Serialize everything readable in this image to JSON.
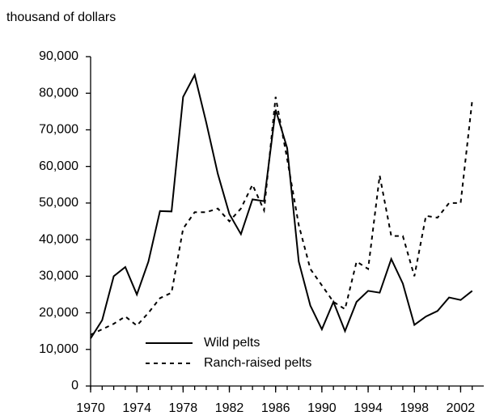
{
  "chart_data": {
    "type": "line",
    "y_label": "thousand of dollars",
    "x": [
      1970,
      1971,
      1972,
      1973,
      1974,
      1975,
      1976,
      1977,
      1978,
      1979,
      1980,
      1981,
      1982,
      1983,
      1984,
      1985,
      1986,
      1987,
      1988,
      1989,
      1990,
      1991,
      1992,
      1993,
      1994,
      1995,
      1996,
      1997,
      1998,
      1999,
      2000,
      2001,
      2002,
      2003
    ],
    "series": [
      {
        "name": "Wild pelts",
        "color": "#000000",
        "dash": "solid",
        "values": [
          13000,
          18000,
          30000,
          32500,
          25000,
          34000,
          47800,
          47700,
          79000,
          85000,
          72000,
          58000,
          47000,
          41500,
          51000,
          50500,
          75500,
          65000,
          34000,
          22000,
          15500,
          23000,
          15000,
          23000,
          26000,
          25500,
          34700,
          28000,
          16700,
          19000,
          20500,
          24200,
          23500,
          26000
        ]
      },
      {
        "name": "Ranch-raised pelts",
        "color": "#000000",
        "dash": "dashed",
        "values": [
          14000,
          15500,
          17000,
          19000,
          16500,
          20000,
          24000,
          25500,
          43000,
          47500,
          47500,
          48500,
          45000,
          48500,
          55000,
          48000,
          79000,
          62000,
          44000,
          32000,
          27500,
          23000,
          21000,
          34000,
          32000,
          57500,
          41000,
          41000,
          30000,
          46500,
          46000,
          50000,
          50000,
          78000
        ]
      }
    ],
    "xlim": [
      1970,
      2004
    ],
    "xticks": [
      1970,
      1974,
      1978,
      1982,
      1986,
      1990,
      1994,
      1998,
      2002
    ],
    "ylim": [
      0,
      90000
    ],
    "yticks": [
      0,
      {
        "value": 10000,
        "label": "10,000"
      },
      {
        "value": 20000,
        "label": "20,000"
      },
      {
        "value": 30000,
        "label": "30,000"
      },
      {
        "value": 40000,
        "label": "40,000"
      },
      {
        "value": 50000,
        "label": "50,000"
      },
      {
        "value": 60000,
        "label": "60,000"
      },
      {
        "value": 70000,
        "label": "70,000"
      },
      {
        "value": 80000,
        "label": "80,000"
      },
      {
        "value": 90000,
        "label": "90,000"
      }
    ],
    "grid": false,
    "legend": "lower center"
  }
}
